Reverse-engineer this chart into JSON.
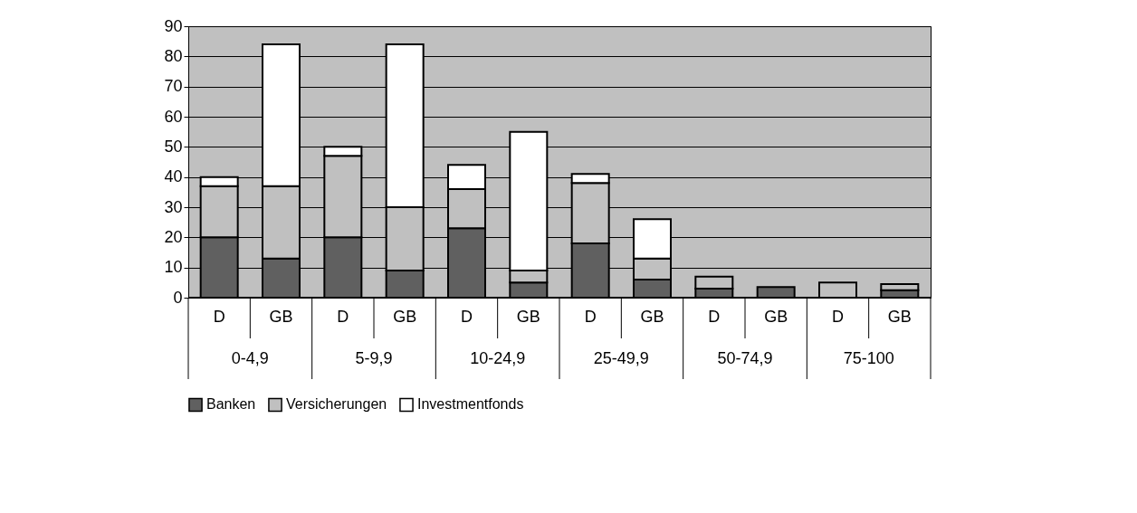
{
  "chart_data": {
    "type": "bar",
    "stacked": true,
    "categories": [
      "D",
      "GB",
      "D",
      "GB",
      "D",
      "GB",
      "D",
      "GB",
      "D",
      "GB",
      "D",
      "GB"
    ],
    "annotations": [
      "0-4,9",
      "5-9,9",
      "10-24,9",
      "25-49,9",
      "50-74,9",
      "75-100"
    ],
    "series": [
      {
        "name": "Banken",
        "color": "#606060",
        "values": [
          20,
          13,
          20,
          9,
          23,
          5,
          18,
          6,
          3,
          3.5,
          null,
          2.5
        ]
      },
      {
        "name": "Versicherungen",
        "color": "#c0c0c0",
        "values": [
          17,
          24,
          27,
          21,
          13,
          4,
          20,
          7,
          4,
          null,
          5,
          2
        ]
      },
      {
        "name": "Investmentfonds",
        "color": "#ffffff",
        "values": [
          3,
          47,
          3,
          54,
          8,
          46,
          3,
          13,
          null,
          null,
          null,
          null
        ]
      }
    ],
    "ylim": [
      0,
      90
    ],
    "yticks": [
      0,
      10,
      20,
      30,
      40,
      50,
      60,
      70,
      80,
      90
    ],
    "grid": "y",
    "legend": "bottom"
  }
}
